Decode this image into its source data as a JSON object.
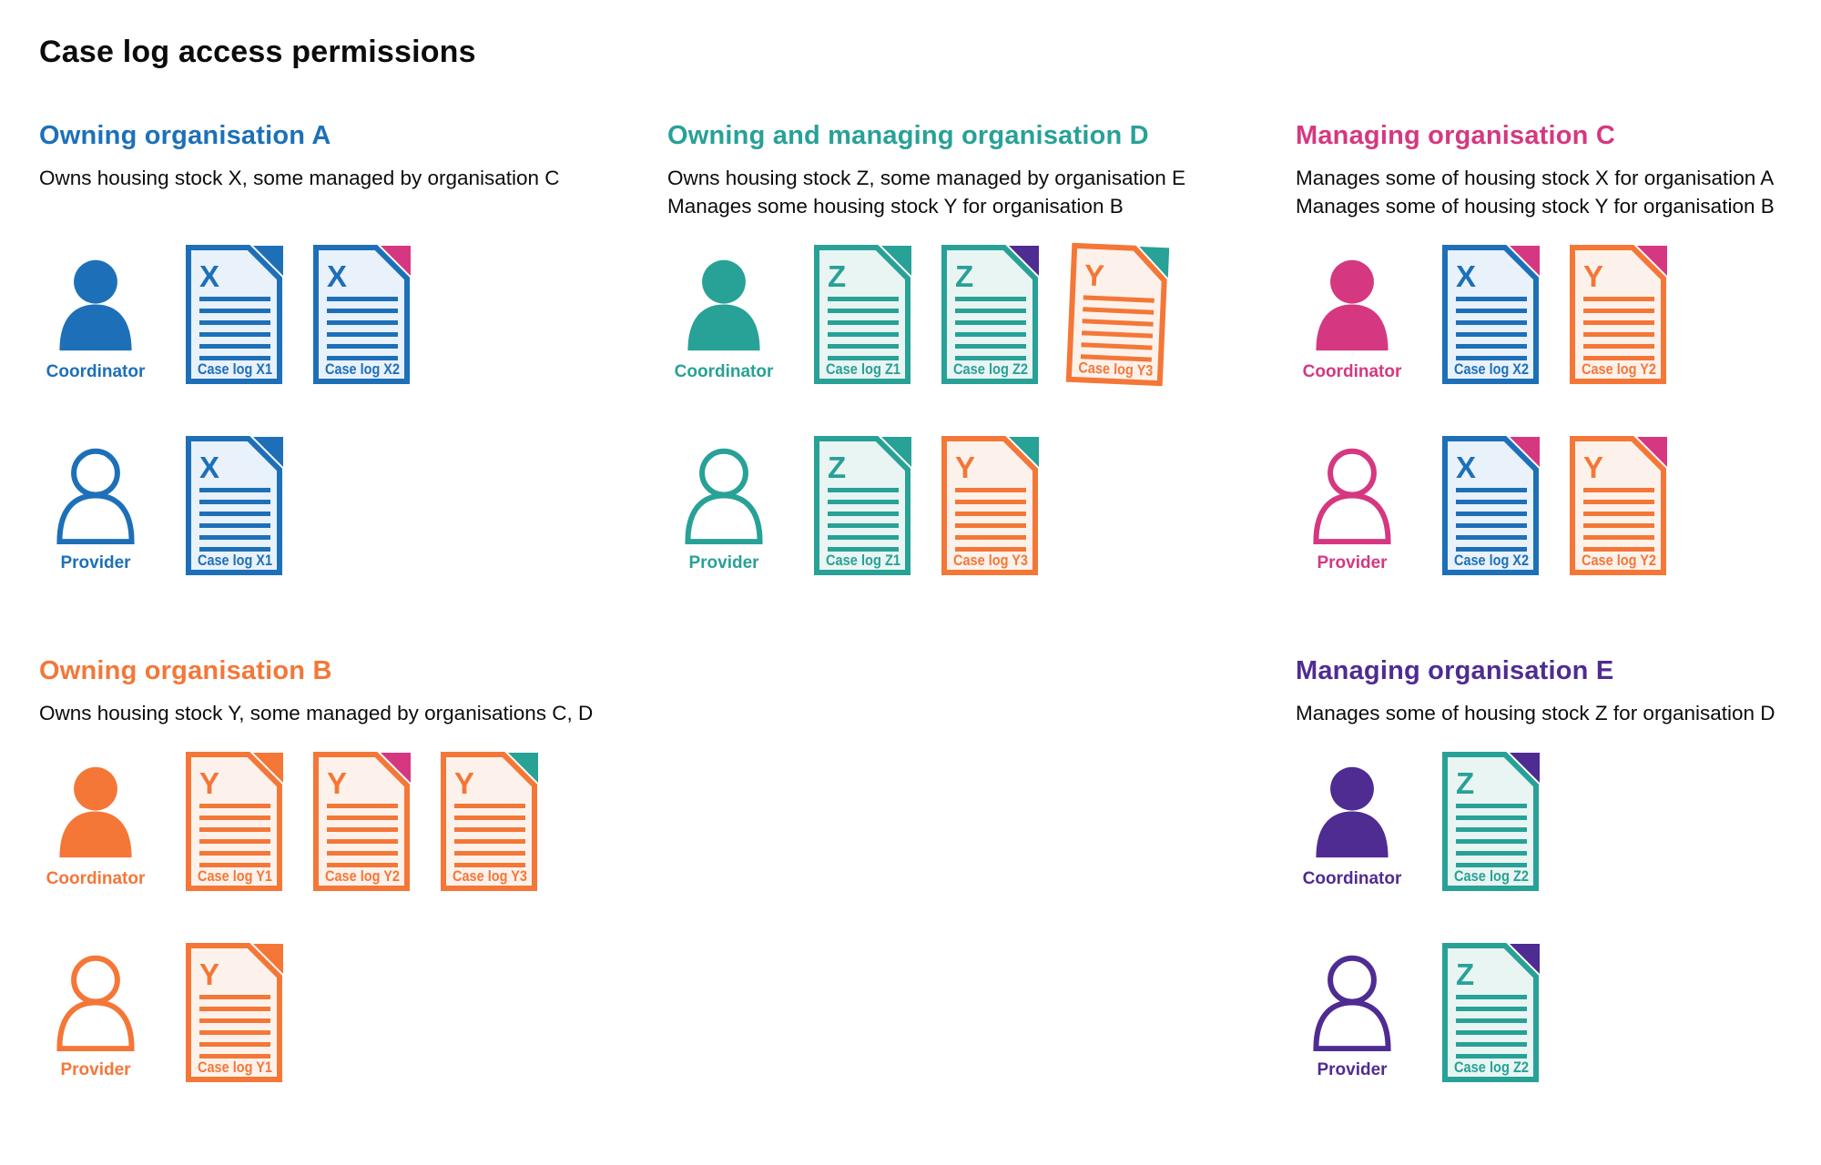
{
  "page_title": "Case log access permissions",
  "colors": {
    "blue": "#1d70b8",
    "teal": "#28a197",
    "pink": "#d53880",
    "orange": "#f47738",
    "purple": "#4f2c92",
    "text": "#0b0c0c",
    "blue_tint": "#e9f1fa",
    "teal_tint": "#e9f5f3",
    "orange_tint": "#fdf2eb"
  },
  "sections": [
    {
      "id": "owning-organisation-a",
      "accent": "blue",
      "heading": "Owning organisation A",
      "description": [
        "Owns housing stock X, some managed by organisation C"
      ],
      "layout": {
        "row": 1,
        "col": 1
      },
      "rows": [
        {
          "role": "Coordinator",
          "person_style": "filled",
          "docs": [
            {
              "letter": "X",
              "label": "Case log X1",
              "paper": "blue",
              "corner": "blue"
            },
            {
              "letter": "X",
              "label": "Case log X2",
              "paper": "blue",
              "corner": "pink"
            }
          ]
        },
        {
          "role": "Provider",
          "person_style": "outline",
          "docs": [
            {
              "letter": "X",
              "label": "Case log X1",
              "paper": "blue",
              "corner": "blue"
            }
          ]
        }
      ]
    },
    {
      "id": "owning-and-managing-organisation-d",
      "accent": "teal",
      "heading": "Owning and managing organisation D",
      "description": [
        "Owns housing stock Z, some managed by organisation E",
        "Manages some housing stock Y for organisation B"
      ],
      "layout": {
        "row": 1,
        "col": 2
      },
      "rows": [
        {
          "role": "Coordinator",
          "person_style": "filled",
          "docs": [
            {
              "letter": "Z",
              "label": "Case log Z1",
              "paper": "teal",
              "corner": "teal"
            },
            {
              "letter": "Z",
              "label": "Case log Z2",
              "paper": "teal",
              "corner": "purple"
            },
            {
              "letter": "Y",
              "label": "Case log Y3",
              "paper": "orange",
              "corner": "teal",
              "tilt": true
            }
          ]
        },
        {
          "role": "Provider",
          "person_style": "outline",
          "docs": [
            {
              "letter": "Z",
              "label": "Case log Z1",
              "paper": "teal",
              "corner": "teal"
            },
            {
              "letter": "Y",
              "label": "Case log Y3",
              "paper": "orange",
              "corner": "teal"
            }
          ]
        }
      ]
    },
    {
      "id": "managing-organisation-c",
      "accent": "pink",
      "heading": "Managing organisation C",
      "description": [
        "Manages some of housing stock X for organisation A",
        "Manages some of housing stock Y for organisation B"
      ],
      "layout": {
        "row": 1,
        "col": 3
      },
      "rows": [
        {
          "role": "Coordinator",
          "person_style": "filled",
          "docs": [
            {
              "letter": "X",
              "label": "Case log X2",
              "paper": "blue",
              "corner": "pink"
            },
            {
              "letter": "Y",
              "label": "Case log Y2",
              "paper": "orange",
              "corner": "pink"
            }
          ]
        },
        {
          "role": "Provider",
          "person_style": "outline",
          "docs": [
            {
              "letter": "X",
              "label": "Case log X2",
              "paper": "blue",
              "corner": "pink"
            },
            {
              "letter": "Y",
              "label": "Case log Y2",
              "paper": "orange",
              "corner": "pink"
            }
          ]
        }
      ]
    },
    {
      "id": "owning-organisation-b",
      "accent": "orange",
      "heading": "Owning organisation B",
      "description": [
        "Owns housing stock Y, some managed by organisations C, D"
      ],
      "layout": {
        "row": 2,
        "col": 1
      },
      "rows": [
        {
          "role": "Coordinator",
          "person_style": "filled",
          "docs": [
            {
              "letter": "Y",
              "label": "Case log Y1",
              "paper": "orange",
              "corner": "orange"
            },
            {
              "letter": "Y",
              "label": "Case log Y2",
              "paper": "orange",
              "corner": "pink"
            },
            {
              "letter": "Y",
              "label": "Case log Y3",
              "paper": "orange",
              "corner": "teal"
            }
          ]
        },
        {
          "role": "Provider",
          "person_style": "outline",
          "docs": [
            {
              "letter": "Y",
              "label": "Case log Y1",
              "paper": "orange",
              "corner": "orange"
            }
          ]
        }
      ]
    },
    {
      "id": "managing-organisation-e",
      "accent": "purple",
      "heading": "Managing organisation E",
      "description": [
        "Manages some of housing stock Z for organisation D"
      ],
      "layout": {
        "row": 2,
        "col": 3
      },
      "rows": [
        {
          "role": "Coordinator",
          "person_style": "filled",
          "docs": [
            {
              "letter": "Z",
              "label": "Case log Z2",
              "paper": "teal",
              "corner": "purple"
            }
          ]
        },
        {
          "role": "Provider",
          "person_style": "outline",
          "docs": [
            {
              "letter": "Z",
              "label": "Case log Z2",
              "paper": "teal",
              "corner": "purple"
            }
          ]
        }
      ]
    }
  ]
}
